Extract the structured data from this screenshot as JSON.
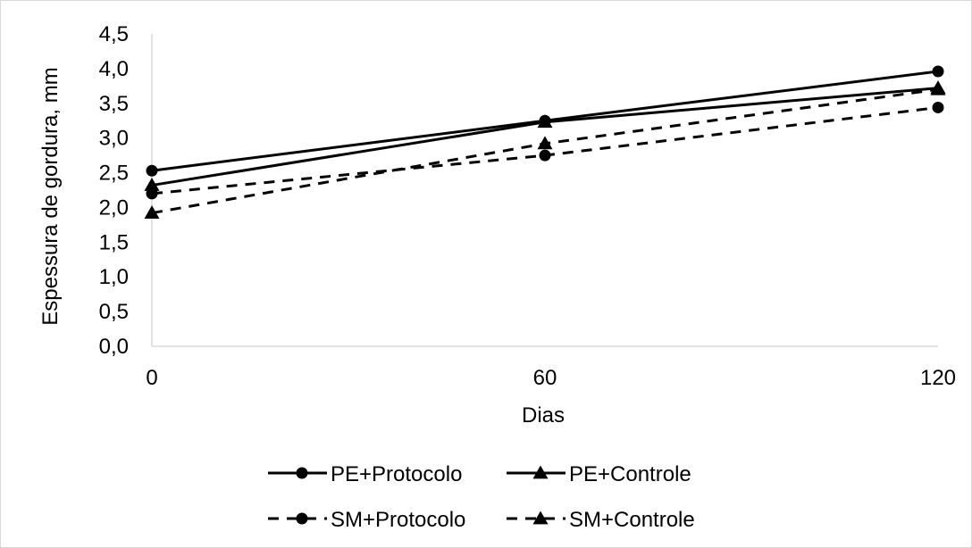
{
  "chart_data": {
    "type": "line",
    "title": "",
    "xlabel": "Dias",
    "ylabel": "Espessura de gordura, mm",
    "x": [
      0,
      60,
      120
    ],
    "x_tick_labels": [
      "0",
      "60",
      "120"
    ],
    "ylim": [
      0,
      4.5
    ],
    "y_ticks": [
      0,
      0.5,
      1.0,
      1.5,
      2.0,
      2.5,
      3.0,
      3.5,
      4.0,
      4.5
    ],
    "y_tick_labels": [
      "0,0",
      "0,5",
      "1,0",
      "1,5",
      "2,0",
      "2,5",
      "3,0",
      "3,5",
      "4,0",
      "4,5"
    ],
    "grid": false,
    "legend_position": "bottom",
    "series": [
      {
        "name": "PE+Protocolo",
        "values": [
          2.53,
          3.25,
          3.96
        ],
        "line": "solid",
        "marker": "circle",
        "color": "#000000"
      },
      {
        "name": "PE+Controle",
        "values": [
          2.32,
          3.23,
          3.72
        ],
        "line": "solid",
        "marker": "triangle",
        "color": "#000000"
      },
      {
        "name": "SM+Protocolo",
        "values": [
          2.2,
          2.75,
          3.44
        ],
        "line": "dashed",
        "marker": "circle",
        "color": "#000000"
      },
      {
        "name": "SM+Controle",
        "values": [
          1.92,
          2.92,
          3.7
        ],
        "line": "dashed",
        "marker": "triangle",
        "color": "#000000"
      }
    ]
  }
}
